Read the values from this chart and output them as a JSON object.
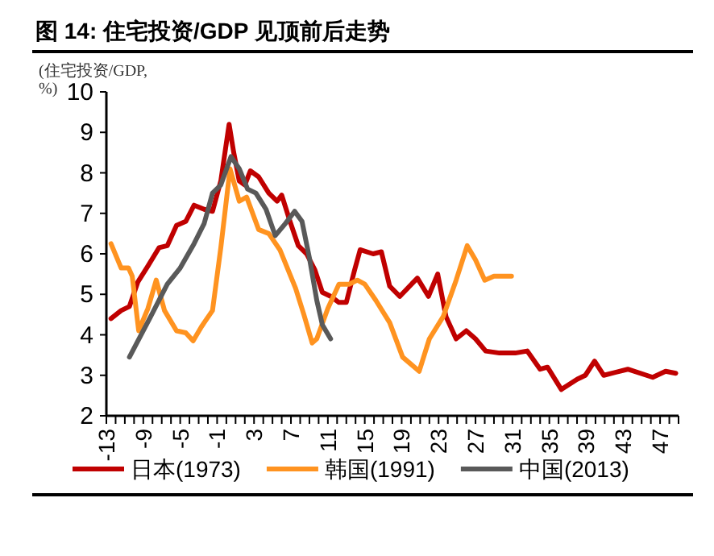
{
  "chart_data": {
    "type": "line",
    "title": "图 14: 住宅投资/GDP 见顶前后走势",
    "ylabel": "(住宅投资/GDP, %)",
    "xlim": [
      -13,
      49
    ],
    "ylim": [
      2,
      10
    ],
    "yticks": [
      2,
      3,
      4,
      5,
      6,
      7,
      8,
      9,
      10
    ],
    "xticks": [
      -13,
      {
        "value": -12,
        "label": null
      },
      {
        "value": -11,
        "label": null
      },
      {
        "value": -10,
        "label": null
      },
      -9,
      {
        "value": -8,
        "label": null
      },
      {
        "value": -7,
        "label": null
      },
      {
        "value": -6,
        "label": null
      },
      -5,
      {
        "value": -4,
        "label": null
      },
      {
        "value": -3,
        "label": null
      },
      {
        "value": -2,
        "label": null
      },
      -1,
      {
        "value": 0,
        "label": null
      },
      {
        "value": 1,
        "label": null
      },
      {
        "value": 2,
        "label": null
      },
      3,
      {
        "value": 4,
        "label": null
      },
      {
        "value": 5,
        "label": null
      },
      {
        "value": 6,
        "label": null
      },
      7,
      {
        "value": 8,
        "label": null
      },
      {
        "value": 9,
        "label": null
      },
      {
        "value": 10,
        "label": null
      },
      11,
      {
        "value": 12,
        "label": null
      },
      {
        "value": 13,
        "label": null
      },
      {
        "value": 14,
        "label": null
      },
      15,
      {
        "value": 16,
        "label": null
      },
      {
        "value": 17,
        "label": null
      },
      {
        "value": 18,
        "label": null
      },
      19,
      {
        "value": 20,
        "label": null
      },
      {
        "value": 21,
        "label": null
      },
      {
        "value": 22,
        "label": null
      },
      23,
      {
        "value": 24,
        "label": null
      },
      {
        "value": 25,
        "label": null
      },
      {
        "value": 26,
        "label": null
      },
      27,
      {
        "value": 28,
        "label": null
      },
      {
        "value": 29,
        "label": null
      },
      {
        "value": 30,
        "label": null
      },
      31,
      {
        "value": 32,
        "label": null
      },
      {
        "value": 33,
        "label": null
      },
      {
        "value": 34,
        "label": null
      },
      35,
      {
        "value": 36,
        "label": null
      },
      {
        "value": 37,
        "label": null
      },
      {
        "value": 38,
        "label": null
      },
      39,
      {
        "value": 40,
        "label": null
      },
      {
        "value": 41,
        "label": null
      },
      {
        "value": 42,
        "label": null
      },
      43,
      {
        "value": 44,
        "label": null
      },
      {
        "value": 45,
        "label": null
      },
      {
        "value": 46,
        "label": null
      },
      47,
      {
        "value": 48,
        "label": null
      },
      {
        "value": 49,
        "label": null
      }
    ],
    "grid": false,
    "legend": "bottom",
    "marker": "none",
    "line_style": "solid",
    "series": [
      {
        "name": "日本(1973)",
        "color": "#c00000",
        "x": [
          -12.5,
          -11.4,
          -10.5,
          -9.6,
          -8.5,
          -7.3,
          -6.4,
          -5.4,
          -4.4,
          -3.5,
          -2.4,
          -1.5,
          -0.6,
          0.3,
          0.8,
          1.4,
          2.0,
          2.6,
          3.5,
          4.6,
          5.5,
          6.0,
          6.9,
          7.8,
          8.7,
          9.6,
          10.4,
          11.3,
          12.2,
          13.0,
          13.9,
          14.5,
          15.9,
          16.8,
          17.7,
          18.8,
          20.7,
          21.9,
          22.9,
          23.8,
          24.9,
          26.0,
          27.0,
          28.1,
          29.6,
          31.3,
          32.6,
          34.0,
          34.8,
          36.3,
          38.0,
          38.9,
          39.9,
          40.9,
          43.5,
          46.2,
          47.6,
          48.7
        ],
        "values": [
          4.4,
          4.6,
          4.7,
          5.3,
          5.7,
          6.15,
          6.2,
          6.7,
          6.8,
          7.2,
          7.1,
          7.05,
          7.8,
          9.2,
          8.5,
          7.8,
          7.7,
          8.05,
          7.9,
          7.5,
          7.3,
          7.45,
          6.8,
          6.2,
          6.0,
          5.6,
          5.05,
          4.95,
          4.8,
          4.8,
          5.6,
          6.1,
          6.0,
          6.05,
          5.2,
          4.95,
          5.4,
          4.95,
          5.5,
          4.45,
          3.9,
          4.1,
          3.9,
          3.6,
          3.55,
          3.55,
          3.6,
          3.15,
          3.2,
          2.65,
          2.9,
          3.0,
          3.35,
          3.0,
          3.15,
          2.95,
          3.1,
          3.05
        ]
      },
      {
        "name": "韩国(1991)",
        "color": "#ff9320",
        "x": [
          -12.5,
          -11.4,
          -10.6,
          -10.2,
          -9.5,
          -8.5,
          -7.6,
          -6.7,
          -5.4,
          -4.4,
          -3.6,
          -2.7,
          -1.5,
          -0.6,
          0.4,
          1.4,
          2.2,
          3.5,
          4.6,
          5.8,
          7.5,
          8.4,
          9.3,
          9.8,
          11.0,
          12.2,
          13.3,
          14.2,
          15.0,
          16.2,
          17.7,
          19.1,
          20.9,
          22.0,
          23.5,
          24.9,
          26.1,
          27.0,
          28.0,
          29.0,
          30.9
        ],
        "values": [
          6.25,
          5.65,
          5.65,
          5.45,
          4.1,
          4.65,
          5.35,
          4.6,
          4.1,
          4.05,
          3.85,
          4.2,
          4.6,
          6.15,
          8.1,
          7.3,
          7.4,
          6.6,
          6.5,
          6.1,
          5.15,
          4.5,
          3.8,
          3.9,
          4.65,
          5.25,
          5.25,
          5.35,
          5.25,
          4.85,
          4.3,
          3.45,
          3.1,
          3.9,
          4.45,
          5.35,
          6.2,
          5.85,
          5.35,
          5.45,
          5.45
        ]
      },
      {
        "name": "中国(2013)",
        "color": "#595959",
        "x": [
          -10.5,
          -8.2,
          -6.4,
          -5.0,
          -3.5,
          -2.4,
          -1.5,
          -0.6,
          0.5,
          1.4,
          2.3,
          3.2,
          4.3,
          5.3,
          6.4,
          7.4,
          8.2,
          9.0,
          9.8,
          10.4,
          11.3
        ],
        "values": [
          3.45,
          4.45,
          5.25,
          5.65,
          6.25,
          6.75,
          7.5,
          7.7,
          8.4,
          8.1,
          7.6,
          7.5,
          7.1,
          6.45,
          6.75,
          7.05,
          6.8,
          5.9,
          4.85,
          4.25,
          3.9
        ]
      }
    ]
  }
}
